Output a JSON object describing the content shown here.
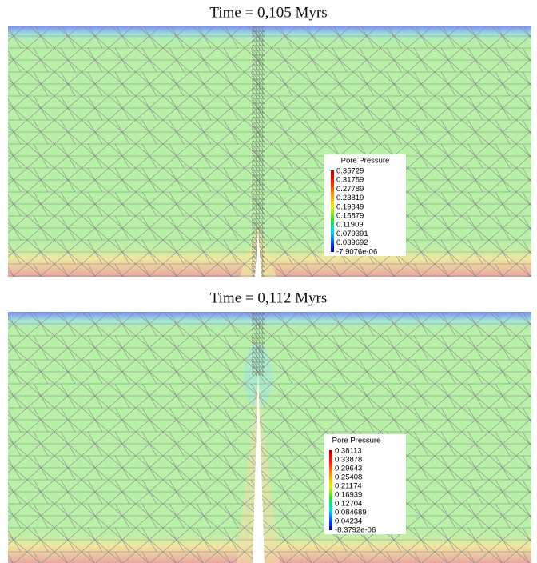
{
  "panels": [
    {
      "title": "Time = 0,105 Myrs",
      "legend": {
        "title": "Pore Pressure",
        "labels": [
          "0.35729",
          "0.31759",
          "0.27789",
          "0.23819",
          "0.19849",
          "0.15879",
          "0.11909",
          "0.079391",
          "0.039692",
          "-7.9076e-06"
        ]
      }
    },
    {
      "title": "Time = 0,112 Myrs",
      "legend": {
        "title": "Pore Pressure",
        "labels": [
          "0.38113",
          "0.33878",
          "0.29643",
          "0.25408",
          "0.21174",
          "0.16939",
          "0.12704",
          "0.084689",
          "0.04234",
          "-8.3792e-06"
        ]
      }
    }
  ]
}
